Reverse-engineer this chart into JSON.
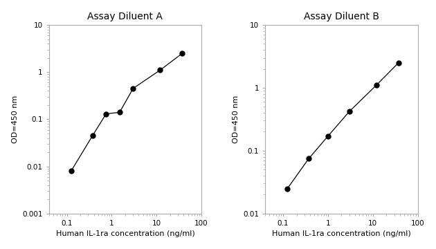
{
  "panel_A": {
    "title": "Assay Diluent A",
    "x": [
      0.125,
      0.375,
      0.75,
      1.5,
      3.0,
      12.0,
      37.5
    ],
    "y": [
      0.008,
      0.045,
      0.13,
      0.14,
      0.45,
      1.1,
      2.5
    ],
    "xlim": [
      0.04,
      100
    ],
    "ylim": [
      0.001,
      10
    ],
    "xticks": [
      0.1,
      1,
      10,
      100
    ],
    "yticks": [
      0.001,
      0.01,
      0.1,
      1,
      10
    ],
    "xtick_labels": [
      "0.1",
      "1",
      "10",
      "100"
    ],
    "ytick_labels": [
      "0.001",
      "0.01",
      "0.1",
      "1",
      "10"
    ],
    "xlabel": "Human IL-1ra concentration (ng/ml)",
    "ylabel": "OD=450 nm"
  },
  "panel_B": {
    "title": "Assay Diluent B",
    "x": [
      0.125,
      0.375,
      1.0,
      3.0,
      12.0,
      37.5
    ],
    "y": [
      0.025,
      0.075,
      0.17,
      0.42,
      1.1,
      2.5
    ],
    "xlim": [
      0.04,
      100
    ],
    "ylim": [
      0.01,
      10
    ],
    "xticks": [
      0.1,
      1,
      10,
      100
    ],
    "yticks": [
      0.01,
      0.1,
      1,
      10
    ],
    "xtick_labels": [
      "0.1",
      "1",
      "10",
      "100"
    ],
    "ytick_labels": [
      "0.01",
      "0.1",
      "1",
      "10"
    ],
    "xlabel": "Human IL-1ra concentration (ng/ml)",
    "ylabel": "OD=450 nm"
  },
  "line_color": "#000000",
  "marker_color": "#000000",
  "marker_size": 5,
  "line_width": 0.9,
  "title_fontsize": 10,
  "label_fontsize": 8,
  "tick_fontsize": 7.5,
  "spine_color": "#aaaaaa",
  "tick_color": "#aaaaaa",
  "background_color": "#ffffff"
}
